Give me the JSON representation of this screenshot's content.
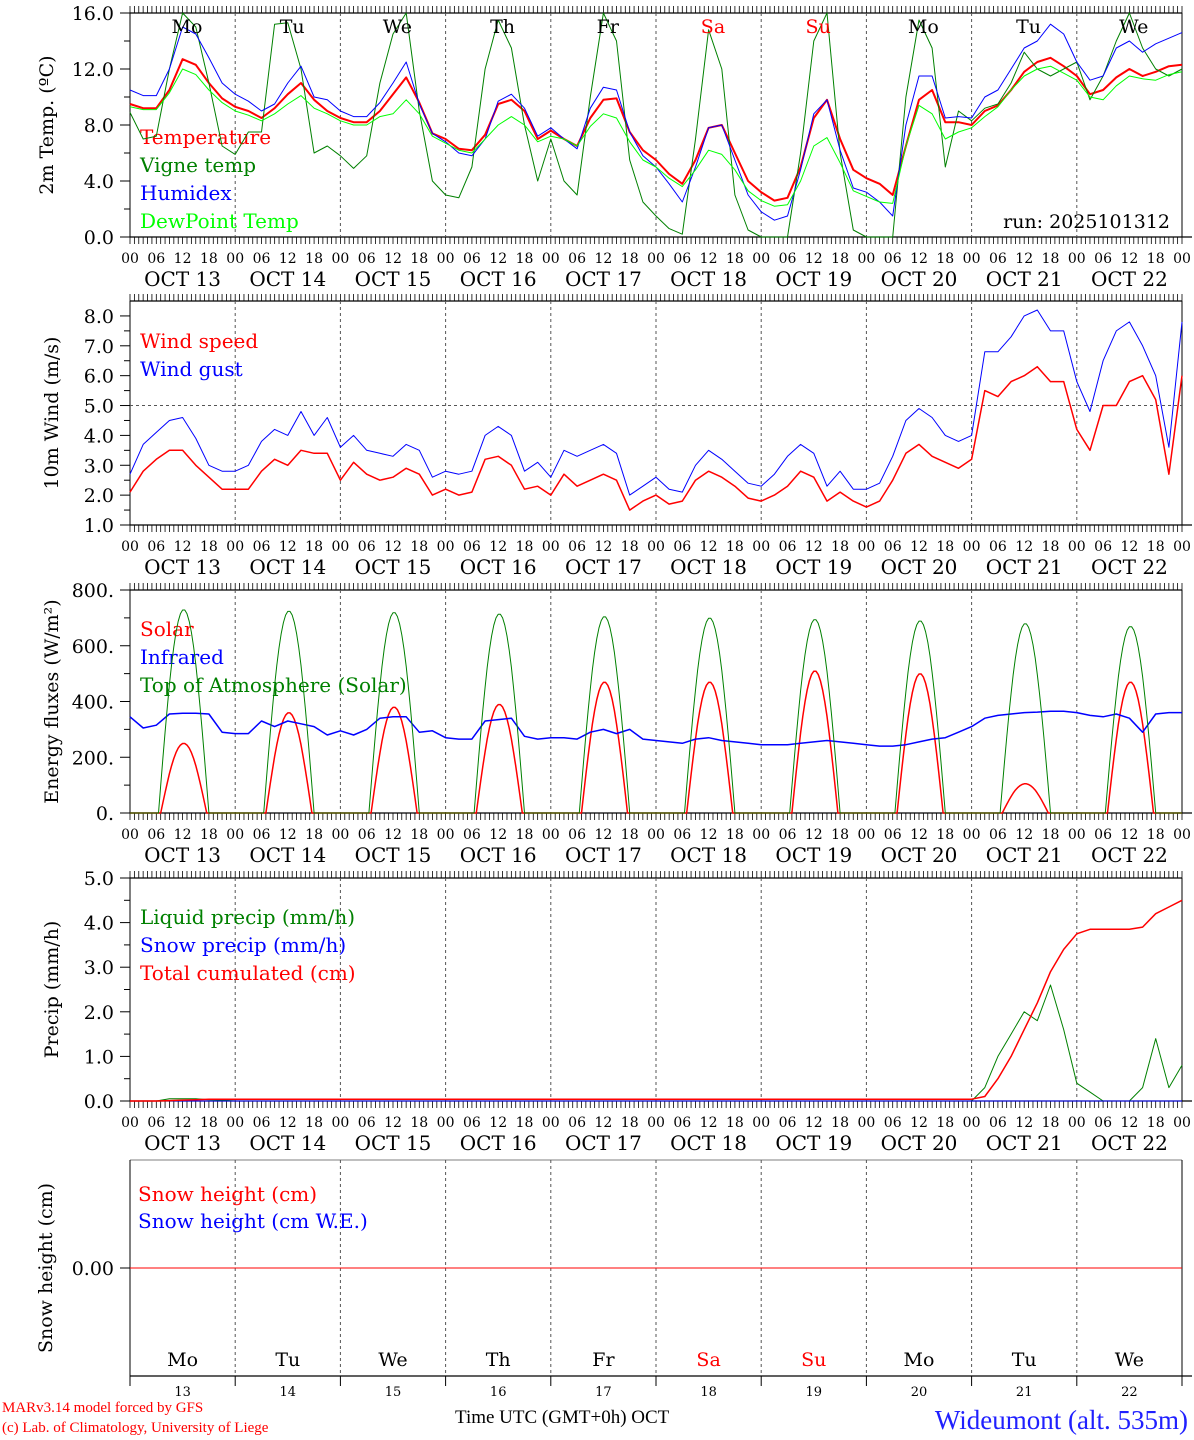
{
  "chart_data": [
    {
      "type": "line",
      "ylabel": "2m Temp. (ºC)",
      "ylim": [
        0,
        16
      ],
      "yticks": [
        0,
        4,
        8,
        12,
        16
      ],
      "ytick_labels": [
        "0.0",
        "4.0",
        "8.0",
        "12.0",
        "16.0"
      ],
      "annotation": "run: 2025101312",
      "step_hours": 3,
      "series": [
        {
          "name": "Temperature",
          "color": "#ff0000",
          "width": 2,
          "values": [
            9.5,
            9.2,
            9.2,
            10.5,
            12.7,
            12.3,
            11.0,
            9.9,
            9.3,
            9.0,
            8.5,
            9.2,
            10.2,
            11.0,
            9.8,
            9.0,
            8.5,
            8.2,
            8.2,
            9.0,
            10.2,
            11.4,
            9.6,
            7.4,
            7.0,
            6.3,
            6.2,
            7.3,
            9.5,
            9.8,
            9.0,
            7.0,
            7.6,
            7.0,
            6.5,
            8.5,
            9.8,
            9.9,
            7.5,
            6.2,
            5.5,
            4.5,
            3.8,
            5.5,
            7.8,
            8.0,
            6.0,
            4.0,
            3.2,
            2.6,
            2.8,
            5.0,
            8.5,
            9.8,
            7.0,
            4.8,
            4.2,
            3.8,
            3.0,
            6.5,
            9.8,
            10.5,
            8.2,
            8.2,
            8.0,
            9.0,
            9.4,
            10.5,
            11.8,
            12.5,
            12.8,
            12.2,
            11.5,
            10.2,
            10.5,
            11.4,
            12.0,
            11.5,
            11.8,
            12.2,
            12.3
          ]
        },
        {
          "name": "Vigne temp",
          "color": "#008000",
          "width": 1,
          "values": [
            8.9,
            7.0,
            7.2,
            12.0,
            16.0,
            15.0,
            11.0,
            6.5,
            5.9,
            7.5,
            7.5,
            15.2,
            15.3,
            12.0,
            6.0,
            6.5,
            5.8,
            4.9,
            5.8,
            11.0,
            14.5,
            16.0,
            9.0,
            4.0,
            3.0,
            2.8,
            5.0,
            12.0,
            15.5,
            13.5,
            8.0,
            4.0,
            7.0,
            4.0,
            3.0,
            10.0,
            16.0,
            14.0,
            5.5,
            2.5,
            1.5,
            0.6,
            0.2,
            7.0,
            14.8,
            12.0,
            3.0,
            0.5,
            0,
            0,
            0,
            6.0,
            14.0,
            16.0,
            6.0,
            0.5,
            0,
            0,
            0,
            10.0,
            15.5,
            13.5,
            5.0,
            9.0,
            8.3,
            9.2,
            9.5,
            11.0,
            13.2,
            12.0,
            11.5,
            12.0,
            12.5,
            9.8,
            11.5,
            14.0,
            16.0,
            13.5,
            12.0,
            11.5,
            12.0
          ]
        },
        {
          "name": "Humidex",
          "color": "#0000ff",
          "width": 1,
          "values": [
            10.5,
            10.1,
            10.1,
            12.0,
            15.0,
            14.5,
            12.8,
            11.0,
            10.2,
            9.7,
            9.0,
            9.5,
            11.0,
            12.2,
            10.0,
            9.8,
            9.0,
            8.6,
            8.6,
            9.6,
            11.0,
            12.5,
            9.5,
            7.4,
            6.8,
            6.0,
            5.8,
            7.0,
            9.7,
            10.2,
            9.2,
            7.2,
            7.8,
            7.0,
            6.3,
            9.2,
            10.7,
            10.5,
            7.5,
            5.8,
            5.0,
            3.8,
            2.5,
            5.0,
            7.8,
            8.0,
            5.5,
            3.0,
            1.8,
            1.2,
            1.5,
            4.8,
            8.8,
            9.8,
            6.2,
            3.5,
            3.2,
            2.5,
            1.5,
            8.0,
            11.5,
            11.5,
            8.5,
            8.6,
            8.5,
            10.0,
            10.5,
            12.0,
            13.5,
            14.0,
            15.2,
            14.5,
            12.5,
            11.2,
            11.5,
            13.5,
            14.0,
            13.2,
            13.8,
            14.2,
            14.6
          ]
        },
        {
          "name": "DewPoint Temp",
          "color": "#00ff00",
          "width": 1,
          "values": [
            9.3,
            9.1,
            9.1,
            10.3,
            12.0,
            11.6,
            10.5,
            9.6,
            9.0,
            8.7,
            8.3,
            8.8,
            9.5,
            10.1,
            9.2,
            8.8,
            8.3,
            8.0,
            8.0,
            8.6,
            8.8,
            9.8,
            8.8,
            7.2,
            6.7,
            6.2,
            6.0,
            7.0,
            8.0,
            8.6,
            8.0,
            6.8,
            7.2,
            7.0,
            6.5,
            7.9,
            8.8,
            8.5,
            6.8,
            5.5,
            5.0,
            4.2,
            3.6,
            4.8,
            6.2,
            5.9,
            4.8,
            3.3,
            2.6,
            2.2,
            2.3,
            4.0,
            6.5,
            7.1,
            5.3,
            3.3,
            2.9,
            2.5,
            2.4,
            6.5,
            9.4,
            8.8,
            7.0,
            7.5,
            7.8,
            8.6,
            9.3,
            10.5,
            11.5,
            12.0,
            12.2,
            11.7,
            11.2,
            10.0,
            9.8,
            10.8,
            11.5,
            11.3,
            11.2,
            11.6,
            11.8
          ]
        }
      ]
    },
    {
      "type": "line",
      "ylabel": "10m Wind (m/s)",
      "ylim": [
        1,
        8.5
      ],
      "yticks": [
        1,
        2,
        3,
        4,
        5,
        6,
        7,
        8
      ],
      "ytick_labels": [
        "1.0",
        "2.0",
        "3.0",
        "4.0",
        "5.0",
        "6.0",
        "7.0",
        "8.0"
      ],
      "reference_line": 5.0,
      "step_hours": 3,
      "series": [
        {
          "name": "Wind speed",
          "color": "#ff0000",
          "width": 1.5,
          "values": [
            2.1,
            2.8,
            3.2,
            3.5,
            3.5,
            3.0,
            2.6,
            2.2,
            2.2,
            2.2,
            2.8,
            3.2,
            3.0,
            3.5,
            3.4,
            3.4,
            2.5,
            3.1,
            2.7,
            2.5,
            2.6,
            2.9,
            2.7,
            2.0,
            2.2,
            2.0,
            2.1,
            3.2,
            3.3,
            3.0,
            2.2,
            2.3,
            2.0,
            2.7,
            2.3,
            2.5,
            2.7,
            2.5,
            1.5,
            1.8,
            2.0,
            1.7,
            1.8,
            2.5,
            2.8,
            2.6,
            2.3,
            1.9,
            1.8,
            2.0,
            2.3,
            2.8,
            2.6,
            1.8,
            2.1,
            1.8,
            1.6,
            1.8,
            2.5,
            3.4,
            3.7,
            3.3,
            3.1,
            2.9,
            3.2,
            5.5,
            5.3,
            5.8,
            6.0,
            6.3,
            5.8,
            5.8,
            4.2,
            3.5,
            5.0,
            5.0,
            5.8,
            6.0,
            5.2,
            2.7,
            6.0
          ]
        },
        {
          "name": "Wind gust",
          "color": "#0000ff",
          "width": 1,
          "values": [
            2.7,
            3.7,
            4.1,
            4.5,
            4.6,
            3.9,
            3.0,
            2.8,
            2.8,
            3.0,
            3.8,
            4.2,
            4.0,
            4.8,
            4.0,
            4.6,
            3.6,
            4.0,
            3.5,
            3.4,
            3.3,
            3.7,
            3.5,
            2.6,
            2.8,
            2.7,
            2.8,
            4.0,
            4.3,
            4.0,
            2.8,
            3.1,
            2.6,
            3.5,
            3.3,
            3.5,
            3.7,
            3.4,
            2.0,
            2.3,
            2.6,
            2.2,
            2.1,
            3.0,
            3.5,
            3.2,
            2.8,
            2.4,
            2.3,
            2.7,
            3.3,
            3.7,
            3.4,
            2.3,
            2.8,
            2.2,
            2.2,
            2.4,
            3.3,
            4.5,
            4.9,
            4.6,
            4.0,
            3.8,
            4.0,
            6.8,
            6.8,
            7.3,
            8.0,
            8.2,
            7.5,
            7.5,
            5.8,
            4.8,
            6.5,
            7.5,
            7.8,
            7.0,
            6.0,
            3.6,
            7.8
          ]
        }
      ]
    },
    {
      "type": "line",
      "ylabel": "Energy fluxes (W/m²)",
      "ylim": [
        0,
        800
      ],
      "yticks": [
        0,
        200,
        400,
        600,
        800
      ],
      "ytick_labels": [
        "0.",
        "200.",
        "400.",
        "600.",
        "800."
      ],
      "step_hours": 3,
      "series": [
        {
          "name": "Solar",
          "color": "#ff0000",
          "width": 1.5,
          "daily_peaks": [
            250,
            360,
            380,
            390,
            470,
            470,
            510,
            500,
            105,
            470
          ],
          "daylight_hours": [
            7,
            17.5
          ]
        },
        {
          "name": "Infrared",
          "color": "#0000ff",
          "width": 1.5,
          "values": [
            345,
            305,
            315,
            355,
            358,
            358,
            355,
            290,
            285,
            285,
            330,
            310,
            330,
            320,
            310,
            280,
            295,
            280,
            300,
            340,
            345,
            345,
            290,
            295,
            270,
            265,
            265,
            330,
            335,
            340,
            275,
            265,
            270,
            270,
            265,
            290,
            300,
            285,
            300,
            265,
            260,
            255,
            250,
            265,
            270,
            260,
            255,
            250,
            245,
            245,
            245,
            250,
            255,
            260,
            255,
            250,
            245,
            240,
            240,
            245,
            255,
            265,
            270,
            290,
            310,
            340,
            350,
            355,
            360,
            362,
            365,
            365,
            360,
            350,
            345,
            355,
            340,
            290,
            355,
            360,
            360
          ]
        },
        {
          "name": "Top of Atmosphere (Solar)",
          "color": "#008000",
          "width": 1,
          "daily_peaks": [
            730,
            725,
            720,
            715,
            705,
            700,
            695,
            690,
            680,
            670
          ],
          "daylight_hours": [
            6.5,
            18
          ]
        }
      ]
    },
    {
      "type": "line",
      "ylabel": "Precip (mm/h)",
      "ylim": [
        0,
        5
      ],
      "yticks": [
        0,
        1,
        2,
        3,
        4,
        5
      ],
      "ytick_labels": [
        "0.0",
        "1.0",
        "2.0",
        "3.0",
        "4.0",
        "5.0"
      ],
      "step_hours": 3,
      "series": [
        {
          "name": "Liquid precip (mm/h)",
          "color": "#008000",
          "width": 1,
          "values": [
            0,
            0,
            0,
            0.05,
            0.05,
            0.05,
            0.03,
            0.02,
            0,
            0,
            0,
            0,
            0,
            0,
            0,
            0,
            0,
            0,
            0,
            0,
            0,
            0,
            0,
            0,
            0,
            0,
            0,
            0,
            0,
            0,
            0,
            0,
            0,
            0,
            0,
            0,
            0,
            0,
            0,
            0,
            0,
            0,
            0,
            0,
            0,
            0,
            0,
            0,
            0,
            0,
            0,
            0,
            0,
            0,
            0,
            0,
            0,
            0,
            0,
            0,
            0,
            0,
            0,
            0,
            0,
            0.3,
            1.0,
            1.5,
            2.0,
            1.8,
            2.6,
            1.6,
            0.4,
            0.2,
            0,
            0,
            0,
            0.3,
            1.4,
            0.3,
            0.8
          ]
        },
        {
          "name": "Snow precip (mm/h)",
          "color": "#0000ff",
          "width": 1,
          "values": [
            0,
            0,
            0,
            0,
            0,
            0,
            0,
            0,
            0,
            0,
            0,
            0,
            0,
            0,
            0,
            0,
            0,
            0,
            0,
            0,
            0,
            0,
            0,
            0,
            0,
            0,
            0,
            0,
            0,
            0,
            0,
            0,
            0,
            0,
            0,
            0,
            0,
            0,
            0,
            0,
            0,
            0,
            0,
            0,
            0,
            0,
            0,
            0,
            0,
            0,
            0,
            0,
            0,
            0,
            0,
            0,
            0,
            0,
            0,
            0,
            0,
            0,
            0,
            0,
            0,
            0,
            0,
            0,
            0,
            0,
            0,
            0,
            0,
            0,
            0,
            0,
            0,
            0,
            0,
            0,
            0
          ]
        },
        {
          "name": "Total cumulated (cm)",
          "color": "#ff0000",
          "width": 1.5,
          "values": [
            0,
            0,
            0,
            0.01,
            0.02,
            0.03,
            0.04,
            0.04,
            0.04,
            0.04,
            0.04,
            0.04,
            0.04,
            0.04,
            0.04,
            0.04,
            0.04,
            0.04,
            0.04,
            0.04,
            0.04,
            0.04,
            0.04,
            0.04,
            0.04,
            0.04,
            0.04,
            0.04,
            0.04,
            0.04,
            0.04,
            0.04,
            0.04,
            0.04,
            0.04,
            0.04,
            0.04,
            0.04,
            0.04,
            0.04,
            0.04,
            0.04,
            0.04,
            0.04,
            0.04,
            0.04,
            0.04,
            0.04,
            0.04,
            0.04,
            0.04,
            0.04,
            0.04,
            0.04,
            0.04,
            0.04,
            0.04,
            0.04,
            0.04,
            0.04,
            0.04,
            0.04,
            0.04,
            0.04,
            0.04,
            0.1,
            0.5,
            1.0,
            1.6,
            2.2,
            2.9,
            3.4,
            3.75,
            3.85,
            3.85,
            3.85,
            3.85,
            3.9,
            4.2,
            4.35,
            4.5
          ]
        }
      ]
    },
    {
      "type": "line",
      "ylabel": "Snow height (cm)",
      "ylim": [
        -1,
        1
      ],
      "yticks": [
        0
      ],
      "ytick_labels": [
        "0.00"
      ],
      "step_hours": 3,
      "series": [
        {
          "name": "Snow height (cm)",
          "color": "#ff0000",
          "width": 1,
          "values": [
            0,
            0
          ]
        },
        {
          "name": "Snow height (cm W.E.)",
          "color": "#0000ff",
          "width": 1,
          "values": []
        }
      ]
    }
  ],
  "x_axis": {
    "hour_ticks": [
      "00",
      "06",
      "12",
      "18"
    ],
    "final_tick": "00",
    "dates": [
      "OCT 13",
      "OCT 14",
      "OCT 15",
      "OCT 16",
      "OCT 17",
      "OCT 18",
      "OCT 19",
      "OCT 20",
      "OCT 21",
      "OCT 22"
    ],
    "day_names": [
      "Mo",
      "Tu",
      "We",
      "Th",
      "Fr",
      "Sa",
      "Su",
      "Mo",
      "Tu",
      "We"
    ],
    "day_numbers": [
      "13",
      "14",
      "15",
      "16",
      "17",
      "18",
      "19",
      "20",
      "21",
      "22"
    ],
    "weekend_color": "#ff0000",
    "weekend_flags": [
      false,
      false,
      false,
      false,
      false,
      true,
      true,
      false,
      false,
      false
    ],
    "title": "Time UTC (GMT+0h)",
    "month": "OCT"
  },
  "footer": {
    "model": "MARv3.14 model forced by GFS",
    "credit": "(c) Lab. of Climatology, University of Liege",
    "station": "Wideumont (alt. 535m)"
  }
}
